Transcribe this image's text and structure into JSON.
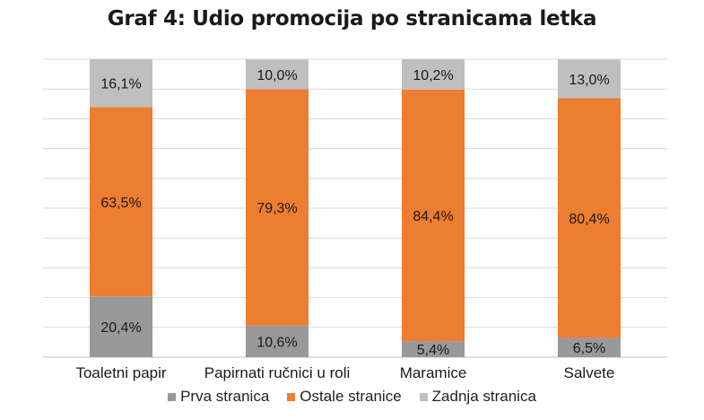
{
  "chart_data": {
    "type": "bar",
    "stacked": true,
    "percent": true,
    "title": "Graf 4: Udio promocija po stranicama letka",
    "categories": [
      "Toaletni papir",
      "Papirnati ručnici u roli",
      "Maramice",
      "Salvete"
    ],
    "series": [
      {
        "name": "Prva stranica",
        "color": "#999999",
        "values": [
          20.4,
          10.6,
          5.4,
          6.5
        ],
        "labels": [
          "20,4%",
          "10,6%",
          "5,4%",
          "6,5%"
        ]
      },
      {
        "name": "Ostale stranice",
        "color": "#ed7d31",
        "values": [
          63.5,
          79.3,
          84.4,
          80.4
        ],
        "labels": [
          "63,5%",
          "79,3%",
          "84,4%",
          "80,4%"
        ]
      },
      {
        "name": "Zadnja stranica",
        "color": "#bfbfbf",
        "values": [
          16.1,
          10.0,
          10.2,
          13.0
        ],
        "labels": [
          "16,1%",
          "10,0%",
          "10,2%",
          "13,0%"
        ]
      }
    ],
    "ylim": [
      0,
      100
    ],
    "grid": true,
    "legend_position": "bottom"
  }
}
